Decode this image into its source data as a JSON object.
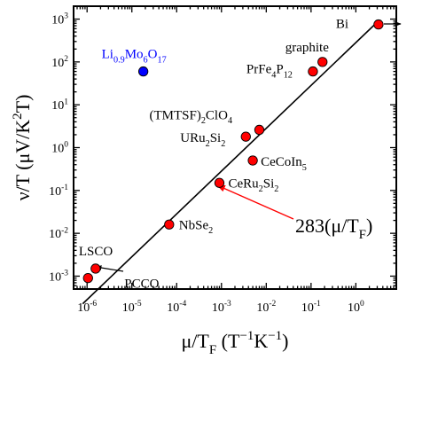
{
  "chart_data": {
    "type": "scatter",
    "xscale": "log",
    "yscale": "log",
    "xlim": [
      5e-07,
      8
    ],
    "ylim": [
      0.0005,
      2000
    ],
    "xticks": [
      {
        "v": 1e-06,
        "base": "10",
        "exp": "-6"
      },
      {
        "v": 1e-05,
        "base": "10",
        "exp": "-5"
      },
      {
        "v": 0.0001,
        "base": "10",
        "exp": "-4"
      },
      {
        "v": 0.001,
        "base": "10",
        "exp": "-3"
      },
      {
        "v": 0.01,
        "base": "10",
        "exp": "-2"
      },
      {
        "v": 0.1,
        "base": "10",
        "exp": "-1"
      },
      {
        "v": 1,
        "base": "10",
        "exp": "0"
      }
    ],
    "yticks": [
      {
        "v": 0.001,
        "base": "10",
        "exp": "-3"
      },
      {
        "v": 0.01,
        "base": "10",
        "exp": "-2"
      },
      {
        "v": 0.1,
        "base": "10",
        "exp": "-1"
      },
      {
        "v": 1,
        "base": "10",
        "exp": "0"
      },
      {
        "v": 10,
        "base": "10",
        "exp": "1"
      },
      {
        "v": 100,
        "base": "10",
        "exp": "2"
      },
      {
        "v": 1000,
        "base": "10",
        "exp": "3"
      }
    ],
    "xlabel": [
      {
        "t": "μ/T"
      },
      {
        "t": "F",
        "sub": true
      },
      {
        "t": " (T"
      },
      {
        "t": "−1",
        "sup": true
      },
      {
        "t": "K"
      },
      {
        "t": "−1",
        "sup": true
      },
      {
        "t": ")"
      }
    ],
    "ylabel": [
      {
        "t": "ν/T (μV/K"
      },
      {
        "t": "2",
        "sup": true
      },
      {
        "t": "T)"
      }
    ],
    "line": {
      "coef": 283,
      "x_range": [
        8e-07,
        3.2
      ]
    },
    "line_label": [
      {
        "t": "283(μ/T"
      },
      {
        "t": "F",
        "sub": true
      },
      {
        "t": ")"
      }
    ],
    "points": [
      {
        "name": "Bi",
        "x": 3.2,
        "y": 750,
        "color": "#ff0000",
        "label": [
          {
            "t": "Bi"
          }
        ]
      },
      {
        "name": "graphite",
        "x": 0.18,
        "y": 100,
        "color": "#ff0000",
        "label": [
          {
            "t": "graphite"
          }
        ]
      },
      {
        "name": "PrFe4P12",
        "x": 0.11,
        "y": 60,
        "color": "#ff0000",
        "label": [
          {
            "t": "PrFe"
          },
          {
            "t": "4",
            "sub": true
          },
          {
            "t": "P"
          },
          {
            "t": "12",
            "sub": true
          }
        ]
      },
      {
        "name": "(TMTSF)2ClO4",
        "x": 0.007,
        "y": 2.6,
        "color": "#ff0000",
        "label": [
          {
            "t": "(TMTSF)"
          },
          {
            "t": "2",
            "sub": true
          },
          {
            "t": "ClO"
          },
          {
            "t": "4",
            "sub": true
          }
        ]
      },
      {
        "name": "URu2Si2",
        "x": 0.0035,
        "y": 1.8,
        "color": "#ff0000",
        "label": [
          {
            "t": "URu"
          },
          {
            "t": "2",
            "sub": true
          },
          {
            "t": "Si"
          },
          {
            "t": "2",
            "sub": true
          }
        ]
      },
      {
        "name": "CeCoIn5",
        "x": 0.005,
        "y": 0.5,
        "color": "#ff0000",
        "label": [
          {
            "t": "CeCoIn"
          },
          {
            "t": "5",
            "sub": true
          }
        ]
      },
      {
        "name": "CeRu2Si2",
        "x": 0.0009,
        "y": 0.15,
        "color": "#ff0000",
        "label": [
          {
            "t": "CeRu"
          },
          {
            "t": "2",
            "sub": true
          },
          {
            "t": "Si"
          },
          {
            "t": "2",
            "sub": true
          }
        ]
      },
      {
        "name": "NbSe2",
        "x": 6.8e-05,
        "y": 0.016,
        "color": "#ff0000",
        "label": [
          {
            "t": "NbSe"
          },
          {
            "t": "2",
            "sub": true
          }
        ]
      },
      {
        "name": "LSCO",
        "x": 1.55e-06,
        "y": 0.0015,
        "color": "#ff0000",
        "label": [
          {
            "t": "LSCO"
          }
        ]
      },
      {
        "name": "PCCO",
        "x": 1.05e-06,
        "y": 0.0009,
        "color": "#ff0000",
        "label": [
          {
            "t": "PCCO"
          }
        ]
      },
      {
        "name": "Li0.9Mo6O17",
        "x": 1.8e-05,
        "y": 60,
        "color": "#0000ff",
        "label": [
          {
            "t": "Li"
          },
          {
            "t": "0.9",
            "sub": true
          },
          {
            "t": "Mo"
          },
          {
            "t": "6",
            "sub": true
          },
          {
            "t": "O"
          },
          {
            "t": "17",
            "sub": true
          }
        ]
      }
    ],
    "colors": {
      "axis": "#000000",
      "fit_line": "#000000",
      "arrow": "#ff0000",
      "blue_label": "#0000ff"
    }
  }
}
